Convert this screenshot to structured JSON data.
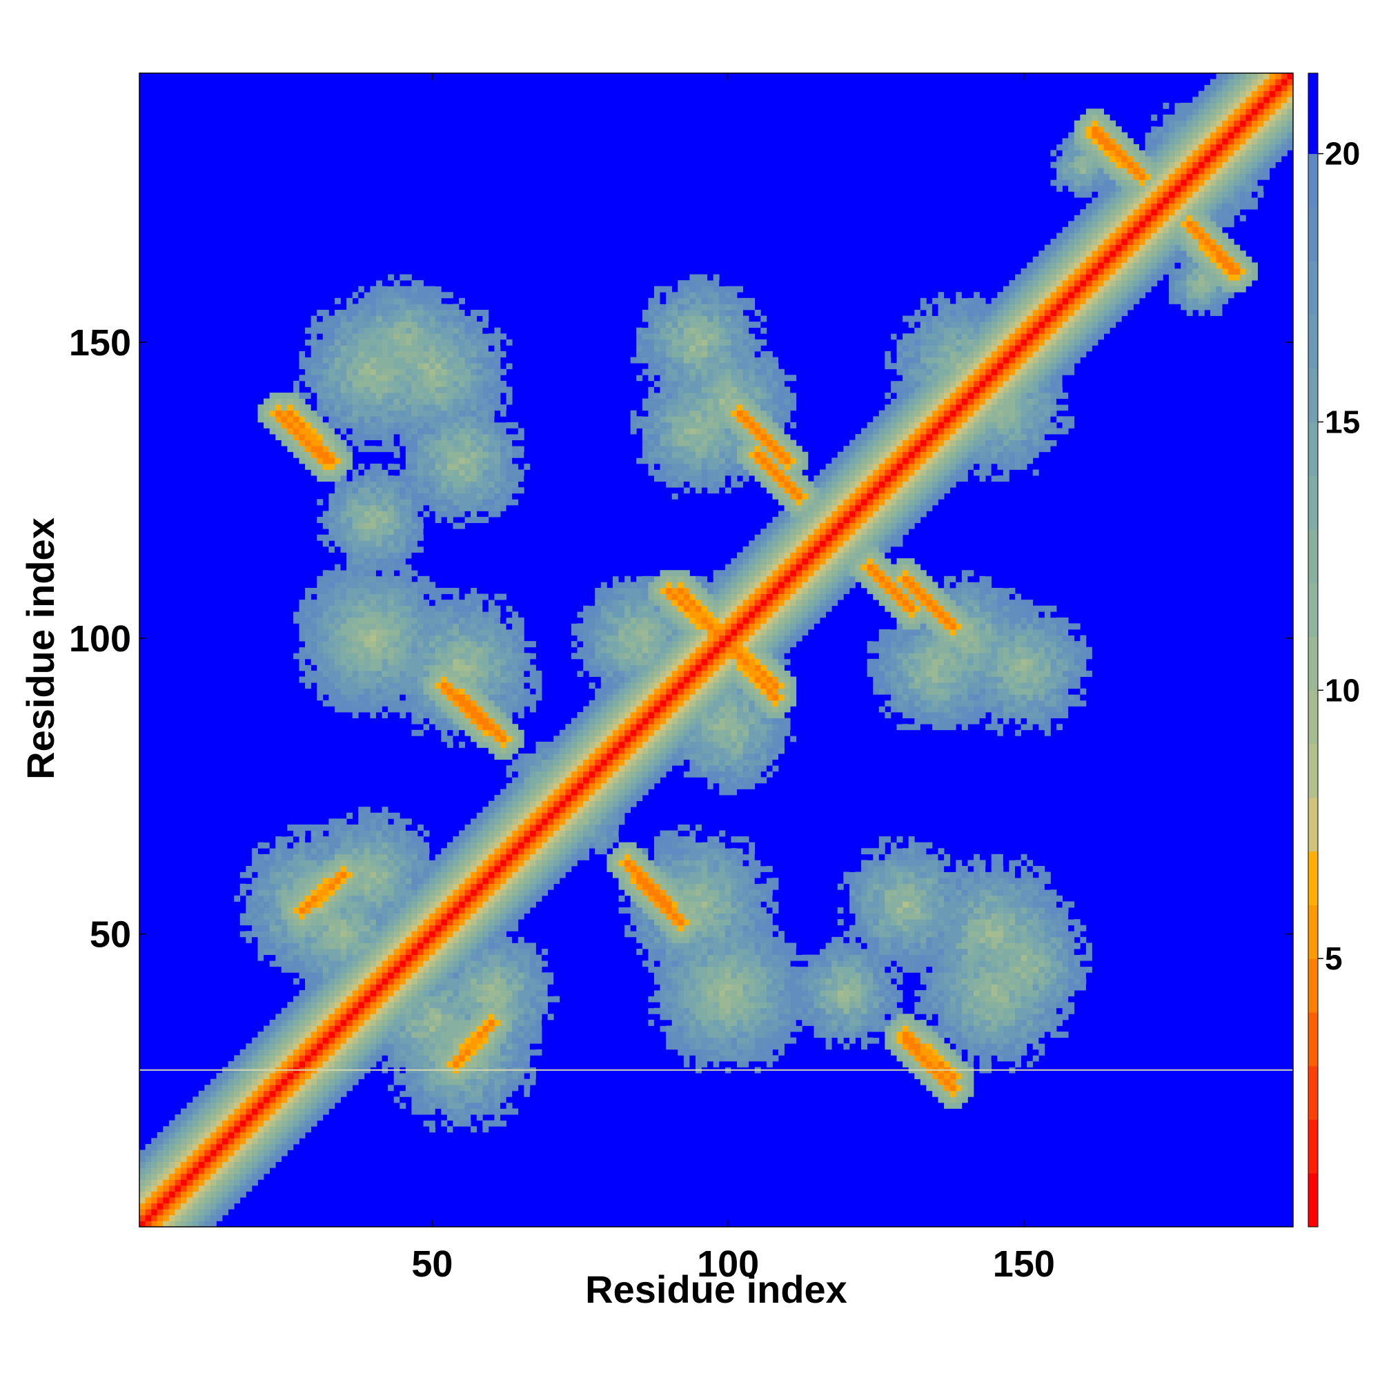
{
  "chart_data": {
    "type": "heatmap",
    "title": "",
    "xlabel": "Residue index",
    "ylabel": "Residue index",
    "xlim": [
      1,
      195
    ],
    "ylim": [
      1,
      195
    ],
    "grid": false,
    "x_ticks": [
      50,
      100,
      150
    ],
    "y_ticks": [
      50,
      100,
      150
    ],
    "colorbar": {
      "ticks": [
        5,
        10,
        15,
        20
      ],
      "vmin": 0,
      "vmax": 21.5,
      "levels": [
        {
          "upper": 1,
          "color": "#ff0000"
        },
        {
          "upper": 2,
          "color": "#ff2000"
        },
        {
          "upper": 3,
          "color": "#ff4000"
        },
        {
          "upper": 4,
          "color": "#ff6000"
        },
        {
          "upper": 5,
          "color": "#ff8000"
        },
        {
          "upper": 6,
          "color": "#ff9a00"
        },
        {
          "upper": 7,
          "color": "#ffb000"
        },
        {
          "upper": 8,
          "color": "#cfc47a"
        },
        {
          "upper": 9,
          "color": "#b4c08c"
        },
        {
          "upper": 10,
          "color": "#a4bc90"
        },
        {
          "upper": 11,
          "color": "#9ab894"
        },
        {
          "upper": 12,
          "color": "#90b49a"
        },
        {
          "upper": 13,
          "color": "#88b0a0"
        },
        {
          "upper": 14,
          "color": "#80aca6"
        },
        {
          "upper": 15,
          "color": "#78a6ac"
        },
        {
          "upper": 16,
          "color": "#70a0b2"
        },
        {
          "upper": 17,
          "color": "#6a9ab6"
        },
        {
          "upper": 18,
          "color": "#6694ba"
        },
        {
          "upper": 19,
          "color": "#628ebe"
        },
        {
          "upper": 20,
          "color": "#5f8ac2"
        },
        {
          "upper": 21.5,
          "color": "#0000ff"
        }
      ]
    },
    "features": [
      {
        "kind": "diagonal",
        "from": 1,
        "to": 195
      },
      {
        "kind": "blob",
        "i": 30,
        "j": 55,
        "r": 14
      },
      {
        "kind": "blob",
        "i": 40,
        "j": 60,
        "r": 12
      },
      {
        "kind": "blob",
        "i": 50,
        "j": 35,
        "r": 12
      },
      {
        "kind": "blob",
        "i": 70,
        "j": 75,
        "r": 8
      },
      {
        "kind": "blob",
        "i": 40,
        "j": 100,
        "r": 14
      },
      {
        "kind": "blob",
        "i": 55,
        "j": 130,
        "r": 12
      },
      {
        "kind": "blob",
        "i": 85,
        "j": 100,
        "r": 12
      },
      {
        "kind": "blob",
        "i": 95,
        "j": 55,
        "r": 14
      },
      {
        "kind": "blob",
        "i": 100,
        "j": 40,
        "r": 14
      },
      {
        "kind": "blob",
        "i": 100,
        "j": 100,
        "r": 12
      },
      {
        "kind": "blob",
        "i": 120,
        "j": 120,
        "r": 10
      },
      {
        "kind": "blob",
        "i": 135,
        "j": 95,
        "r": 12
      },
      {
        "kind": "blob",
        "i": 145,
        "j": 50,
        "r": 14
      },
      {
        "kind": "blob",
        "i": 150,
        "j": 95,
        "r": 12
      },
      {
        "kind": "blob",
        "i": 145,
        "j": 140,
        "r": 14
      },
      {
        "kind": "blob",
        "i": 40,
        "j": 145,
        "r": 14
      },
      {
        "kind": "blob",
        "i": 100,
        "j": 140,
        "r": 12
      },
      {
        "kind": "blob",
        "i": 150,
        "j": 45,
        "r": 12
      },
      {
        "kind": "blob",
        "i": 40,
        "j": 120,
        "r": 10
      },
      {
        "kind": "blob",
        "i": 180,
        "j": 180,
        "r": 12
      },
      {
        "kind": "blob",
        "i": 180,
        "j": 160,
        "r": 6
      },
      {
        "kind": "strand",
        "from": [
          55,
          55
        ],
        "to": [
          62,
          62
        ],
        "i_range": [
          30,
          40
        ]
      },
      {
        "kind": "strand",
        "from": [
          83,
          62
        ],
        "to": [
          90,
          55
        ],
        "i_range": [
          83,
          90
        ]
      },
      {
        "kind": "strand",
        "from": [
          54,
          28
        ],
        "to": [
          60,
          35
        ],
        "i_range": [
          54,
          60
        ]
      },
      {
        "kind": "strand",
        "from": [
          59,
          85
        ],
        "to": [
          52,
          92
        ],
        "i_range": [
          52,
          59
        ]
      },
      {
        "kind": "strand",
        "from": [
          90,
          108
        ],
        "to": [
          108,
          92
        ],
        "i_range": [
          90,
          108
        ]
      },
      {
        "kind": "strand",
        "from": [
          105,
          131
        ],
        "to": [
          112,
          124
        ],
        "i_range": [
          105,
          112
        ]
      },
      {
        "kind": "strand",
        "from": [
          130,
          110
        ],
        "to": [
          138,
          102
        ],
        "i_range": [
          130,
          138
        ]
      },
      {
        "kind": "strand",
        "from": [
          130,
          33
        ],
        "to": [
          138,
          26
        ],
        "i_range": [
          130,
          138
        ]
      },
      {
        "kind": "strand",
        "from": [
          24,
          138
        ],
        "to": [
          32,
          130
        ],
        "i_range": [
          24,
          32
        ]
      },
      {
        "kind": "strand",
        "from": [
          162,
          185
        ],
        "to": [
          170,
          178
        ],
        "i_range": [
          162,
          170
        ]
      },
      {
        "kind": "strand",
        "from": [
          178,
          170
        ],
        "to": [
          186,
          162
        ],
        "i_range": [
          178,
          186
        ]
      }
    ],
    "highlight_row_y": 27
  }
}
